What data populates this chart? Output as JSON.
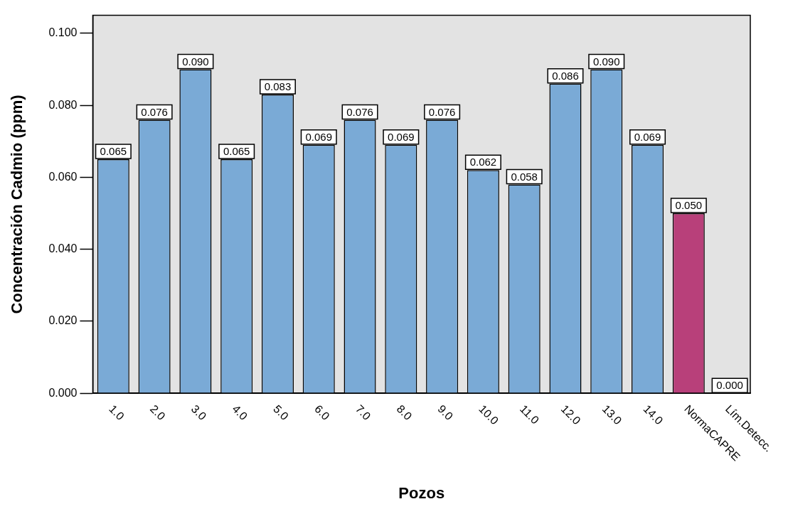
{
  "chart_data": {
    "type": "bar",
    "xlabel": "Pozos",
    "ylabel": "Concentración Cadmio (ppm)",
    "categories": [
      "1.0",
      "2.0",
      "3.0",
      "4.0",
      "5.0",
      "6.0",
      "7.0",
      "8.0",
      "9.0",
      "10.0",
      "11.0",
      "12.0",
      "13.0",
      "14.0",
      "NormaCAPRE",
      "Lím.Detecc."
    ],
    "values": [
      0.065,
      0.076,
      0.09,
      0.065,
      0.083,
      0.069,
      0.076,
      0.069,
      0.076,
      0.062,
      0.058,
      0.086,
      0.09,
      0.069,
      0.05,
      0.0
    ],
    "colors": [
      "#7aaad6",
      "#7aaad6",
      "#7aaad6",
      "#7aaad6",
      "#7aaad6",
      "#7aaad6",
      "#7aaad6",
      "#7aaad6",
      "#7aaad6",
      "#7aaad6",
      "#7aaad6",
      "#7aaad6",
      "#7aaad6",
      "#7aaad6",
      "#b8407a",
      "#7aaad6"
    ],
    "ylim": [
      0,
      0.105
    ],
    "yticks": [
      {
        "value": 0,
        "label": "0.000"
      },
      {
        "value": 0.02,
        "label": "0.020"
      },
      {
        "value": 0.04,
        "label": "0.040"
      },
      {
        "value": 0.06,
        "label": "0.060"
      },
      {
        "value": 0.08,
        "label": "0.080"
      },
      {
        "value": 0.1,
        "label": "0.100"
      }
    ],
    "value_labels": [
      "0.065",
      "0.076",
      "0.090",
      "0.065",
      "0.083",
      "0.069",
      "0.076",
      "0.069",
      "0.076",
      "0.062",
      "0.058",
      "0.086",
      "0.090",
      "0.069",
      "0.050",
      "0.000"
    ],
    "grid": false,
    "legend": false
  }
}
